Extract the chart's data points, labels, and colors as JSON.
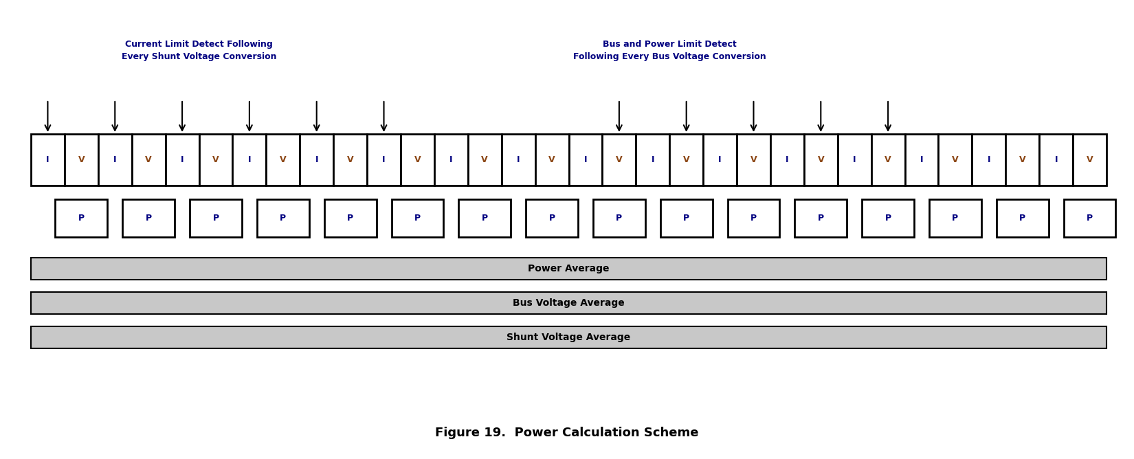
{
  "title": "Figure 19.  Power Calculation Scheme",
  "annotation1_line1": "Current Limit Detect Following",
  "annotation1_line2": "Every Shunt Voltage Conversion",
  "annotation2_line1": "Bus and Power Limit Detect",
  "annotation2_line2": "Following Every Bus Voltage Conversion",
  "label_I": "I",
  "label_V": "V",
  "label_P": "P",
  "label_power_avg": "Power Average",
  "label_bus_avg": "Bus Voltage Average",
  "label_shunt_avg": "Shunt Voltage Average",
  "n_cells": 32,
  "n_pairs": 16,
  "bg_color": "#ffffff",
  "box_color": "#000000",
  "text_color_I": "#000080",
  "text_color_V": "#8B4513",
  "text_color_P": "#000080",
  "avg_box_fill": "#c8c8c8",
  "avg_box_edge": "#000000",
  "annotation_color": "#000080",
  "arrow_color": "#000000",
  "title_fontsize": 13,
  "iv_label_fontsize": 9,
  "p_label_fontsize": 9,
  "avg_label_fontsize": 10,
  "annotation_fontsize": 9,
  "fig_width": 16.5,
  "fig_height": 6.68,
  "dpi": 100
}
